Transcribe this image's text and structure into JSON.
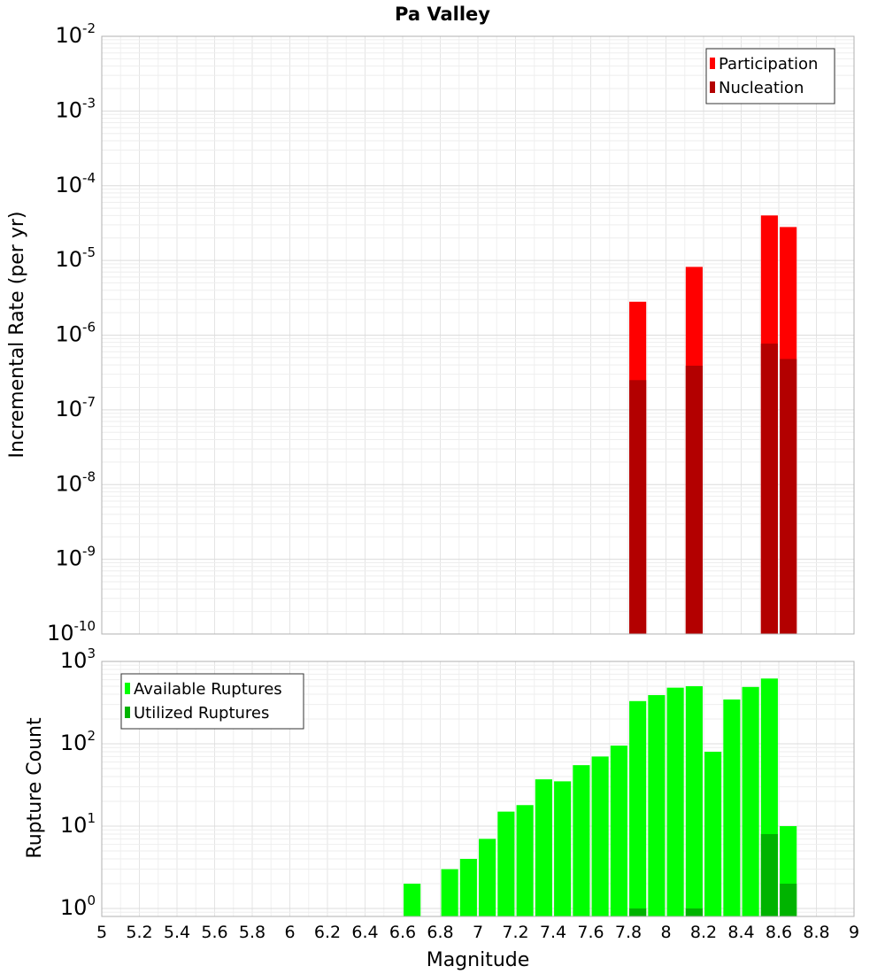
{
  "chart_data": [
    {
      "type": "bar",
      "title": "Pa Valley",
      "xlabel": "",
      "ylabel": "Incremental Rate (per yr)",
      "xlim": [
        5,
        9
      ],
      "ylim": [
        1e-10,
        0.01
      ],
      "yscale": "log",
      "grid": true,
      "legend_position": "top-right",
      "bar_width": 0.09,
      "series": [
        {
          "name": "Participation",
          "color": "#ff0000",
          "x": [
            7.85,
            8.15,
            8.55,
            8.65
          ],
          "values": [
            2.8e-06,
            8.2e-06,
            4e-05,
            2.8e-05
          ]
        },
        {
          "name": "Nucleation",
          "color": "#b30000",
          "x": [
            7.85,
            8.15,
            8.55,
            8.65
          ],
          "values": [
            2.5e-07,
            3.9e-07,
            7.7e-07,
            4.8e-07
          ]
        }
      ],
      "yticks": [
        {
          "base": "10",
          "exp": "-2"
        },
        {
          "base": "10",
          "exp": "-3"
        },
        {
          "base": "10",
          "exp": "-4"
        },
        {
          "base": "10",
          "exp": "-5"
        },
        {
          "base": "10",
          "exp": "-6"
        },
        {
          "base": "10",
          "exp": "-7"
        },
        {
          "base": "10",
          "exp": "-8"
        },
        {
          "base": "10",
          "exp": "-9"
        },
        {
          "base": "10",
          "exp": "-10"
        }
      ]
    },
    {
      "type": "bar",
      "xlabel": "Magnitude",
      "ylabel": "Rupture Count",
      "xlim": [
        5,
        9
      ],
      "ylim": [
        0.8,
        1000
      ],
      "yscale": "log",
      "grid": true,
      "legend_position": "top-left",
      "bar_width": 0.09,
      "series": [
        {
          "name": "Available Ruptures",
          "color": "#00ff00",
          "x": [
            6.65,
            6.85,
            6.95,
            7.05,
            7.15,
            7.25,
            7.35,
            7.45,
            7.55,
            7.65,
            7.75,
            7.85,
            7.95,
            8.05,
            8.15,
            8.25,
            8.35,
            8.45,
            8.55,
            8.65
          ],
          "values": [
            2,
            3,
            4,
            7,
            15,
            18,
            37,
            35,
            55,
            70,
            95,
            330,
            390,
            480,
            500,
            80,
            345,
            490,
            620,
            10
          ]
        },
        {
          "name": "Utilized Ruptures",
          "color": "#00b300",
          "x": [
            7.85,
            8.15,
            8.55,
            8.65
          ],
          "values": [
            1,
            1,
            8,
            2
          ]
        }
      ],
      "xticks": [
        "5",
        "5.2",
        "5.4",
        "5.6",
        "5.8",
        "6",
        "6.2",
        "6.4",
        "6.6",
        "6.8",
        "7",
        "7.2",
        "7.4",
        "7.6",
        "7.8",
        "8",
        "8.2",
        "8.4",
        "8.6",
        "8.8",
        "9"
      ],
      "yticks": [
        {
          "base": "10",
          "exp": "3"
        },
        {
          "base": "10",
          "exp": "2"
        },
        {
          "base": "10",
          "exp": "1"
        },
        {
          "base": "10",
          "exp": "0"
        }
      ]
    }
  ]
}
